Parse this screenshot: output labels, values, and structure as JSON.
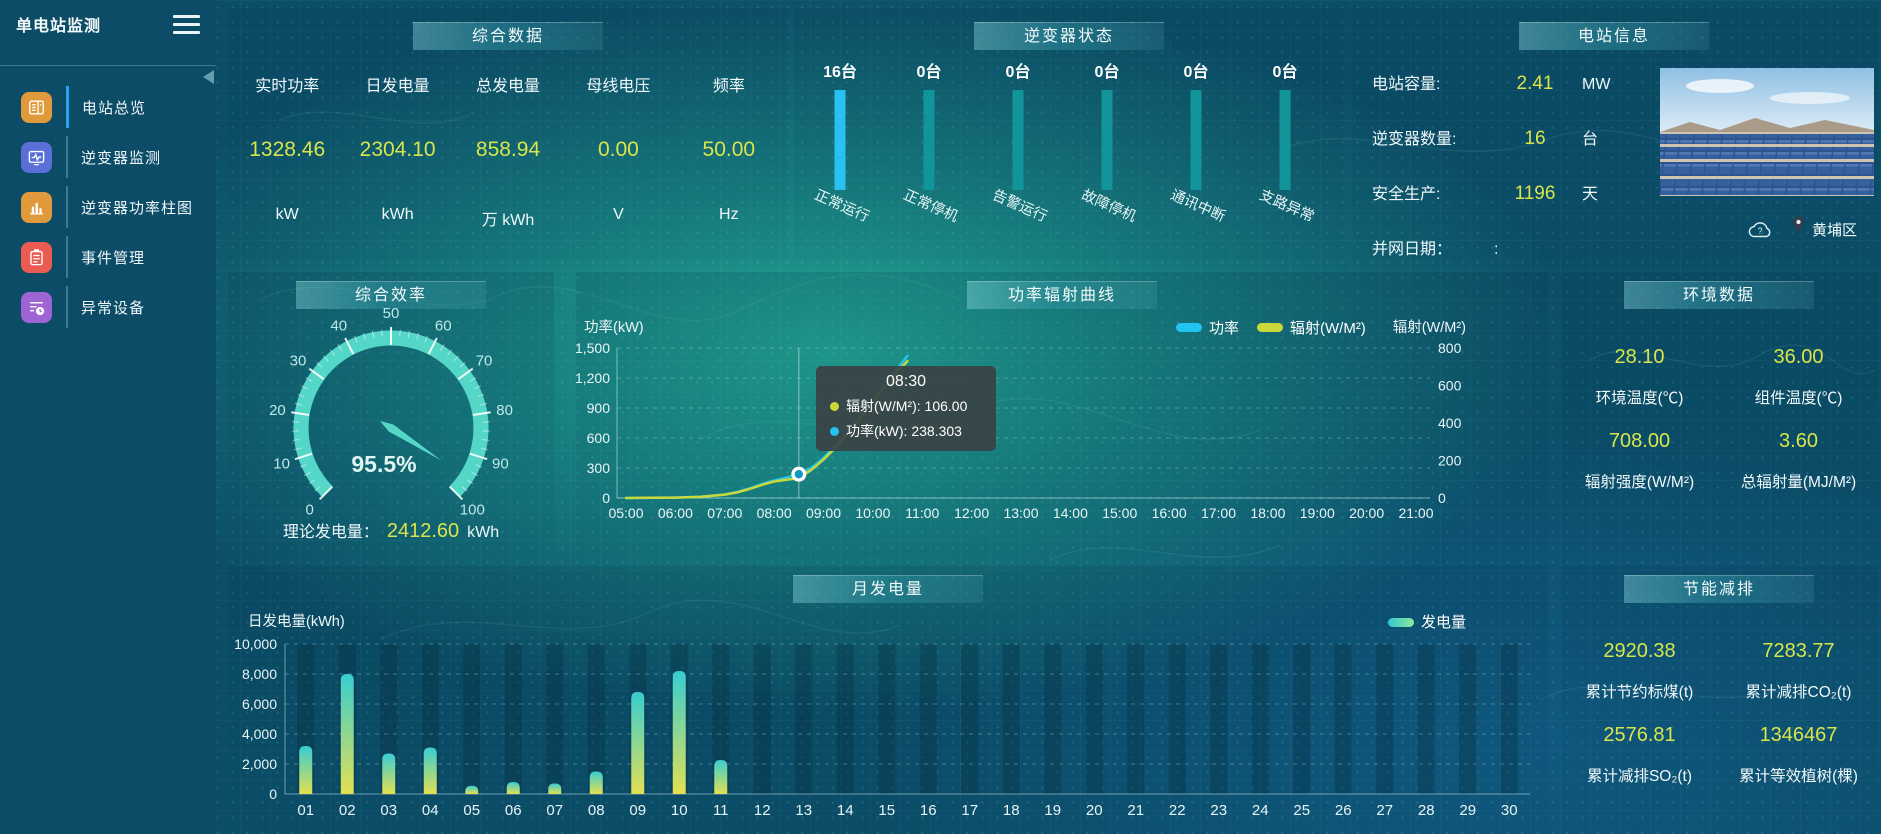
{
  "app": {
    "title": "单电站监测"
  },
  "sidebar": {
    "items": [
      {
        "label": "电站总览",
        "icon": "station-overview-icon",
        "icon_bg": "#e09a3c",
        "active": true
      },
      {
        "label": "逆变器监测",
        "icon": "inverter-monitor-icon",
        "icon_bg": "#5a6fd8",
        "active": false
      },
      {
        "label": "逆变器功率柱图",
        "icon": "inverter-power-chart-icon",
        "icon_bg": "#e09a3c",
        "active": false
      },
      {
        "label": "事件管理",
        "icon": "event-management-icon",
        "icon_bg": "#ea5b52",
        "active": false
      },
      {
        "label": "异常设备",
        "icon": "abnormal-device-icon",
        "icon_bg": "#9e64d4",
        "active": false
      }
    ]
  },
  "summary": {
    "title": "综合数据",
    "metrics": [
      {
        "label": "实时功率",
        "value": "1328.46",
        "unit": "kW"
      },
      {
        "label": "日发电量",
        "value": "2304.10",
        "unit": "kWh"
      },
      {
        "label": "总发电量",
        "value": "858.94",
        "unit": "万 kWh"
      },
      {
        "label": "母线电压",
        "value": "0.00",
        "unit": "V"
      },
      {
        "label": "频率",
        "value": "50.00",
        "unit": "Hz"
      }
    ]
  },
  "inverter_status": {
    "title": "逆变器状态"
  },
  "station_info": {
    "title": "电站信息",
    "rows": [
      {
        "label": "电站容量:",
        "value": "2.41",
        "unit": "MW"
      },
      {
        "label": "逆变器数量:",
        "value": "16",
        "unit": "台"
      },
      {
        "label": "安全生产:",
        "value": "1196",
        "unit": "天"
      },
      {
        "label": "并网日期：",
        "value": ":",
        "unit": ""
      }
    ],
    "location": "黄埔区"
  },
  "efficiency": {
    "title": "综合效率",
    "value_label": "95.5%",
    "footer_label": "理论发电量：",
    "footer_value": "2412.60",
    "footer_unit": "kWh"
  },
  "power_radiation": {
    "title": "功率辐射曲线",
    "tooltip": {
      "time": "08:30",
      "rows": [
        {
          "color": "#c9d93b",
          "text": "辐射(W/M²): 106.00"
        },
        {
          "color": "#22c3ef",
          "text": "功率(kW): 238.303"
        }
      ]
    }
  },
  "environment": {
    "title": "环境数据",
    "metrics": [
      {
        "value": "28.10",
        "label": "环境温度(℃)"
      },
      {
        "value": "36.00",
        "label": "组件温度(℃)"
      },
      {
        "value": "708.00",
        "label": "辐射强度(W/M²)"
      },
      {
        "value": "3.60",
        "label": "总辐射量(MJ/M²)"
      }
    ]
  },
  "monthly_energy": {
    "title": "月发电量"
  },
  "savings": {
    "title": "节能减排",
    "metrics": [
      {
        "value": "2920.38",
        "label": "累计节约标煤(t)"
      },
      {
        "value": "7283.77",
        "label": "累计减排CO₂(t)"
      },
      {
        "value": "2576.81",
        "label": "累计减排SO₂(t)"
      },
      {
        "value": "1346467",
        "label": "累计等效植树(棵)"
      }
    ]
  },
  "chart_data": [
    {
      "id": "inverter-status",
      "type": "bar",
      "title": "逆变器状态",
      "categories": [
        "正常运行",
        "正常停机",
        "告警运行",
        "故障停机",
        "通讯中断",
        "支路异常"
      ],
      "values": [
        16,
        0,
        0,
        0,
        0,
        0
      ],
      "unit": "台",
      "bar_colors": [
        "#29c1f2",
        "#12949b",
        "#12949b",
        "#12949b",
        "#12949b",
        "#12949b"
      ]
    },
    {
      "id": "efficiency-gauge",
      "type": "gauge",
      "title": "综合效率",
      "value": 95.5,
      "min": 0,
      "max": 100,
      "label": "95.5%",
      "tick_labels": [
        0,
        10,
        20,
        30,
        40,
        50,
        60,
        70,
        80,
        90,
        100
      ],
      "arc_color": "#55d7c8"
    },
    {
      "id": "power-radiation",
      "type": "line",
      "title": "功率辐射曲线",
      "ylabel_left": "功率(kW)",
      "ylabel_right": "辐射(W/M²)",
      "x_ticks": [
        "05:00",
        "06:00",
        "07:00",
        "08:00",
        "09:00",
        "10:00",
        "11:00",
        "12:00",
        "13:00",
        "14:00",
        "15:00",
        "16:00",
        "17:00",
        "18:00",
        "19:00",
        "20:00",
        "21:00"
      ],
      "x_range": [
        5,
        21
      ],
      "ylim_left": [
        0,
        1500
      ],
      "yticks_left": [
        "0",
        "300",
        "600",
        "900",
        "1,200",
        "1,500"
      ],
      "ylim_right": [
        0,
        800
      ],
      "yticks_right": [
        "0",
        "200",
        "400",
        "600",
        "800"
      ],
      "legend": [
        {
          "name": "功率",
          "color": "#22c3ef"
        },
        {
          "name": "辐射(W/M²)",
          "color": "#c9d93b"
        }
      ],
      "series": [
        {
          "name": "功率",
          "axis": "left",
          "color": "#22c3ef",
          "x": [
            5,
            5.5,
            6,
            6.5,
            7,
            7.25,
            7.5,
            7.75,
            8,
            8.25,
            8.5,
            8.75,
            9,
            9.25,
            9.5,
            9.75,
            10,
            10.25,
            10.5,
            10.7
          ],
          "y": [
            0,
            1,
            4,
            12,
            35,
            60,
            95,
            140,
            175,
            205,
            238.3,
            300,
            400,
            530,
            680,
            830,
            990,
            1150,
            1300,
            1420
          ]
        },
        {
          "name": "辐射(W/M²)",
          "axis": "right",
          "color": "#c9d93b",
          "x": [
            5,
            5.5,
            6,
            6.5,
            7,
            7.25,
            7.5,
            7.75,
            8,
            8.25,
            8.5,
            8.75,
            9,
            9.25,
            9.5,
            9.75,
            10,
            10.25,
            10.5,
            10.7
          ],
          "y": [
            0,
            1,
            2,
            6,
            18,
            30,
            48,
            70,
            88,
            97,
            106,
            150,
            205,
            270,
            345,
            425,
            510,
            595,
            675,
            730
          ]
        }
      ],
      "crosshair_x": 8.5,
      "marker": {
        "x": 8.5,
        "y": 238.3
      }
    },
    {
      "id": "monthly-energy",
      "type": "bar",
      "title": "月发电量",
      "ylabel": "日发电量(kWh)",
      "legend": [
        {
          "name": "发电量",
          "color_start": "#35c7ce",
          "color_end": "#8ce79c"
        }
      ],
      "categories": [
        "01",
        "02",
        "03",
        "04",
        "05",
        "06",
        "07",
        "08",
        "09",
        "10",
        "11",
        "12",
        "13",
        "14",
        "15",
        "16",
        "17",
        "18",
        "19",
        "20",
        "21",
        "22",
        "23",
        "24",
        "25",
        "26",
        "27",
        "28",
        "29",
        "30"
      ],
      "values": [
        3200,
        8000,
        2700,
        3100,
        550,
        800,
        700,
        1500,
        6800,
        8200,
        2270,
        0,
        0,
        0,
        0,
        0,
        0,
        0,
        0,
        0,
        0,
        0,
        0,
        0,
        0,
        0,
        0,
        0,
        0,
        0
      ],
      "ylim": [
        0,
        10000
      ],
      "yticks": [
        "0",
        "2,000",
        "4,000",
        "6,000",
        "8,000",
        "10,000"
      ],
      "bar_gradient": [
        "#38cdd2",
        "#e3e052"
      ]
    }
  ]
}
